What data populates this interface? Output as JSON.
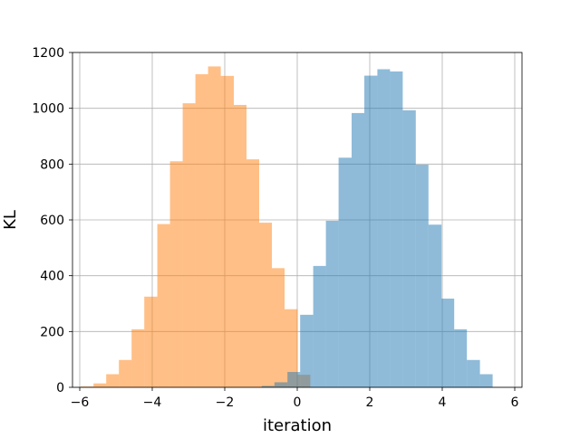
{
  "chart_data": {
    "type": "bar",
    "subtype": "overlapping-histogram",
    "title": "",
    "xlabel": "iteration",
    "ylabel": "KL",
    "xlim": [
      -6.2,
      6.2
    ],
    "ylim": [
      0,
      1200
    ],
    "xticks": [
      -6,
      -4,
      -2,
      0,
      2,
      4,
      6
    ],
    "xtick_labels": [
      "−6",
      "−4",
      "−2",
      "0",
      "2",
      "4",
      "6"
    ],
    "yticks": [
      0,
      200,
      400,
      600,
      800,
      1000,
      1200
    ],
    "ytick_labels": [
      "0",
      "200",
      "400",
      "600",
      "800",
      "1000",
      "1200"
    ],
    "grid": true,
    "legend": "none",
    "series": [
      {
        "color": "#ff7f0e",
        "opacity": 0.5,
        "bin_edges": [
          -5.98,
          -5.62,
          -5.27,
          -4.92,
          -4.57,
          -4.22,
          -3.86,
          -3.51,
          -3.16,
          -2.81,
          -2.46,
          -2.11,
          -1.75,
          -1.4,
          -1.05,
          -0.7,
          -0.35,
          0.01,
          0.36
        ],
        "values": [
          3,
          14,
          47,
          98,
          208,
          325,
          585,
          810,
          1018,
          1122,
          1150,
          1116,
          1012,
          817,
          590,
          427,
          280,
          45
        ]
      },
      {
        "color": "#1f77b4",
        "opacity": 0.5,
        "bin_edges": [
          -0.98,
          -0.63,
          -0.27,
          0.08,
          0.44,
          0.79,
          1.14,
          1.5,
          1.85,
          2.21,
          2.56,
          2.91,
          3.27,
          3.62,
          3.98,
          4.33,
          4.68,
          5.04,
          5.39
        ],
        "values": [
          5,
          18,
          55,
          260,
          435,
          597,
          823,
          983,
          1117,
          1140,
          1132,
          993,
          798,
          583,
          318,
          208,
          98,
          47
        ]
      }
    ]
  }
}
